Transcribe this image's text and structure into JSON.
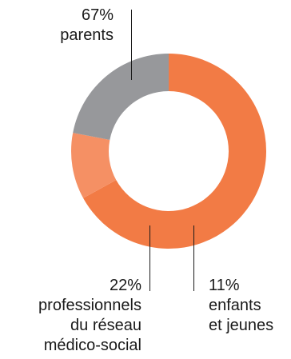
{
  "chart_data": {
    "type": "pie",
    "title": "",
    "donut": true,
    "legend": "none",
    "slices": [
      {
        "label": "parents",
        "value": 67,
        "value_label": "67%",
        "label_lines": [
          "parents"
        ],
        "color": "#f27b45"
      },
      {
        "label": "enfants et jeunes",
        "value": 11,
        "value_label": "11%",
        "label_lines": [
          "enfants",
          "et jeunes"
        ],
        "color": "#f59064"
      },
      {
        "label": "professionnels du réseau médico-social",
        "value": 22,
        "value_label": "22%",
        "label_lines": [
          "professionnels",
          "du réseau",
          "médico-social"
        ],
        "color": "#97989b"
      }
    ]
  }
}
